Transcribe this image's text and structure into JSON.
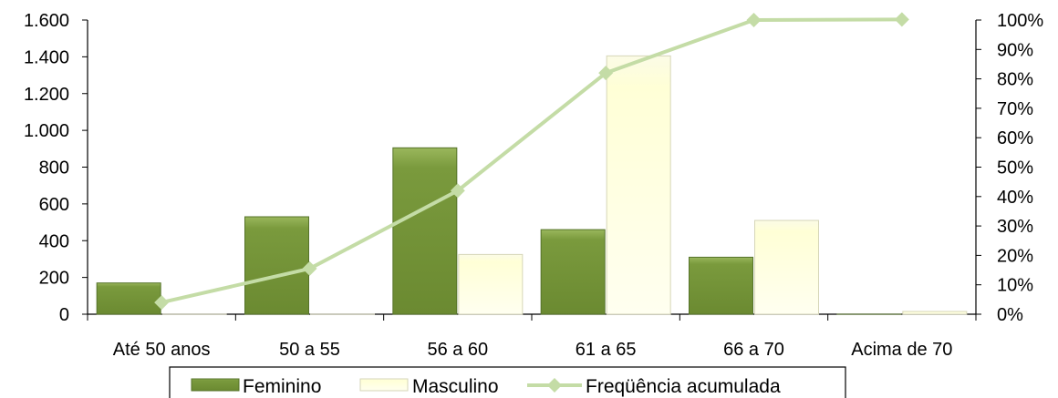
{
  "chart_data": {
    "type": "bar",
    "categories": [
      "Até 50 anos",
      "50 a 55",
      "56 a 60",
      "61 a 65",
      "66 a 70",
      "Acima de 70"
    ],
    "series": [
      {
        "name": "Feminino",
        "kind": "bar",
        "axis": "left",
        "color": "#76963a",
        "values": [
          170,
          530,
          905,
          460,
          310,
          0
        ]
      },
      {
        "name": "Masculino",
        "kind": "bar",
        "axis": "left",
        "color": "#ffffd9",
        "values": [
          0,
          0,
          325,
          1405,
          510,
          15
        ]
      },
      {
        "name": "Freqüência acumulada",
        "kind": "line",
        "axis": "right",
        "color": "#c4dca6",
        "values": [
          4,
          15.5,
          42,
          82,
          100,
          100.2
        ]
      }
    ],
    "y_left": {
      "ylim": [
        0,
        1600
      ],
      "ticks": [
        0,
        200,
        400,
        600,
        800,
        1000,
        1200,
        1400,
        1600
      ],
      "tick_labels": [
        "0",
        "200",
        "400",
        "600",
        "800",
        "1.000",
        "1.200",
        "1.400",
        "1.600"
      ]
    },
    "y_right": {
      "ylim": [
        0,
        100
      ],
      "ticks": [
        0,
        10,
        20,
        30,
        40,
        50,
        60,
        70,
        80,
        90,
        100
      ],
      "tick_labels": [
        "0%",
        "10%",
        "20%",
        "30%",
        "40%",
        "50%",
        "60%",
        "70%",
        "80%",
        "90%",
        "100%"
      ]
    },
    "grid": false,
    "legend_position": "bottom"
  }
}
